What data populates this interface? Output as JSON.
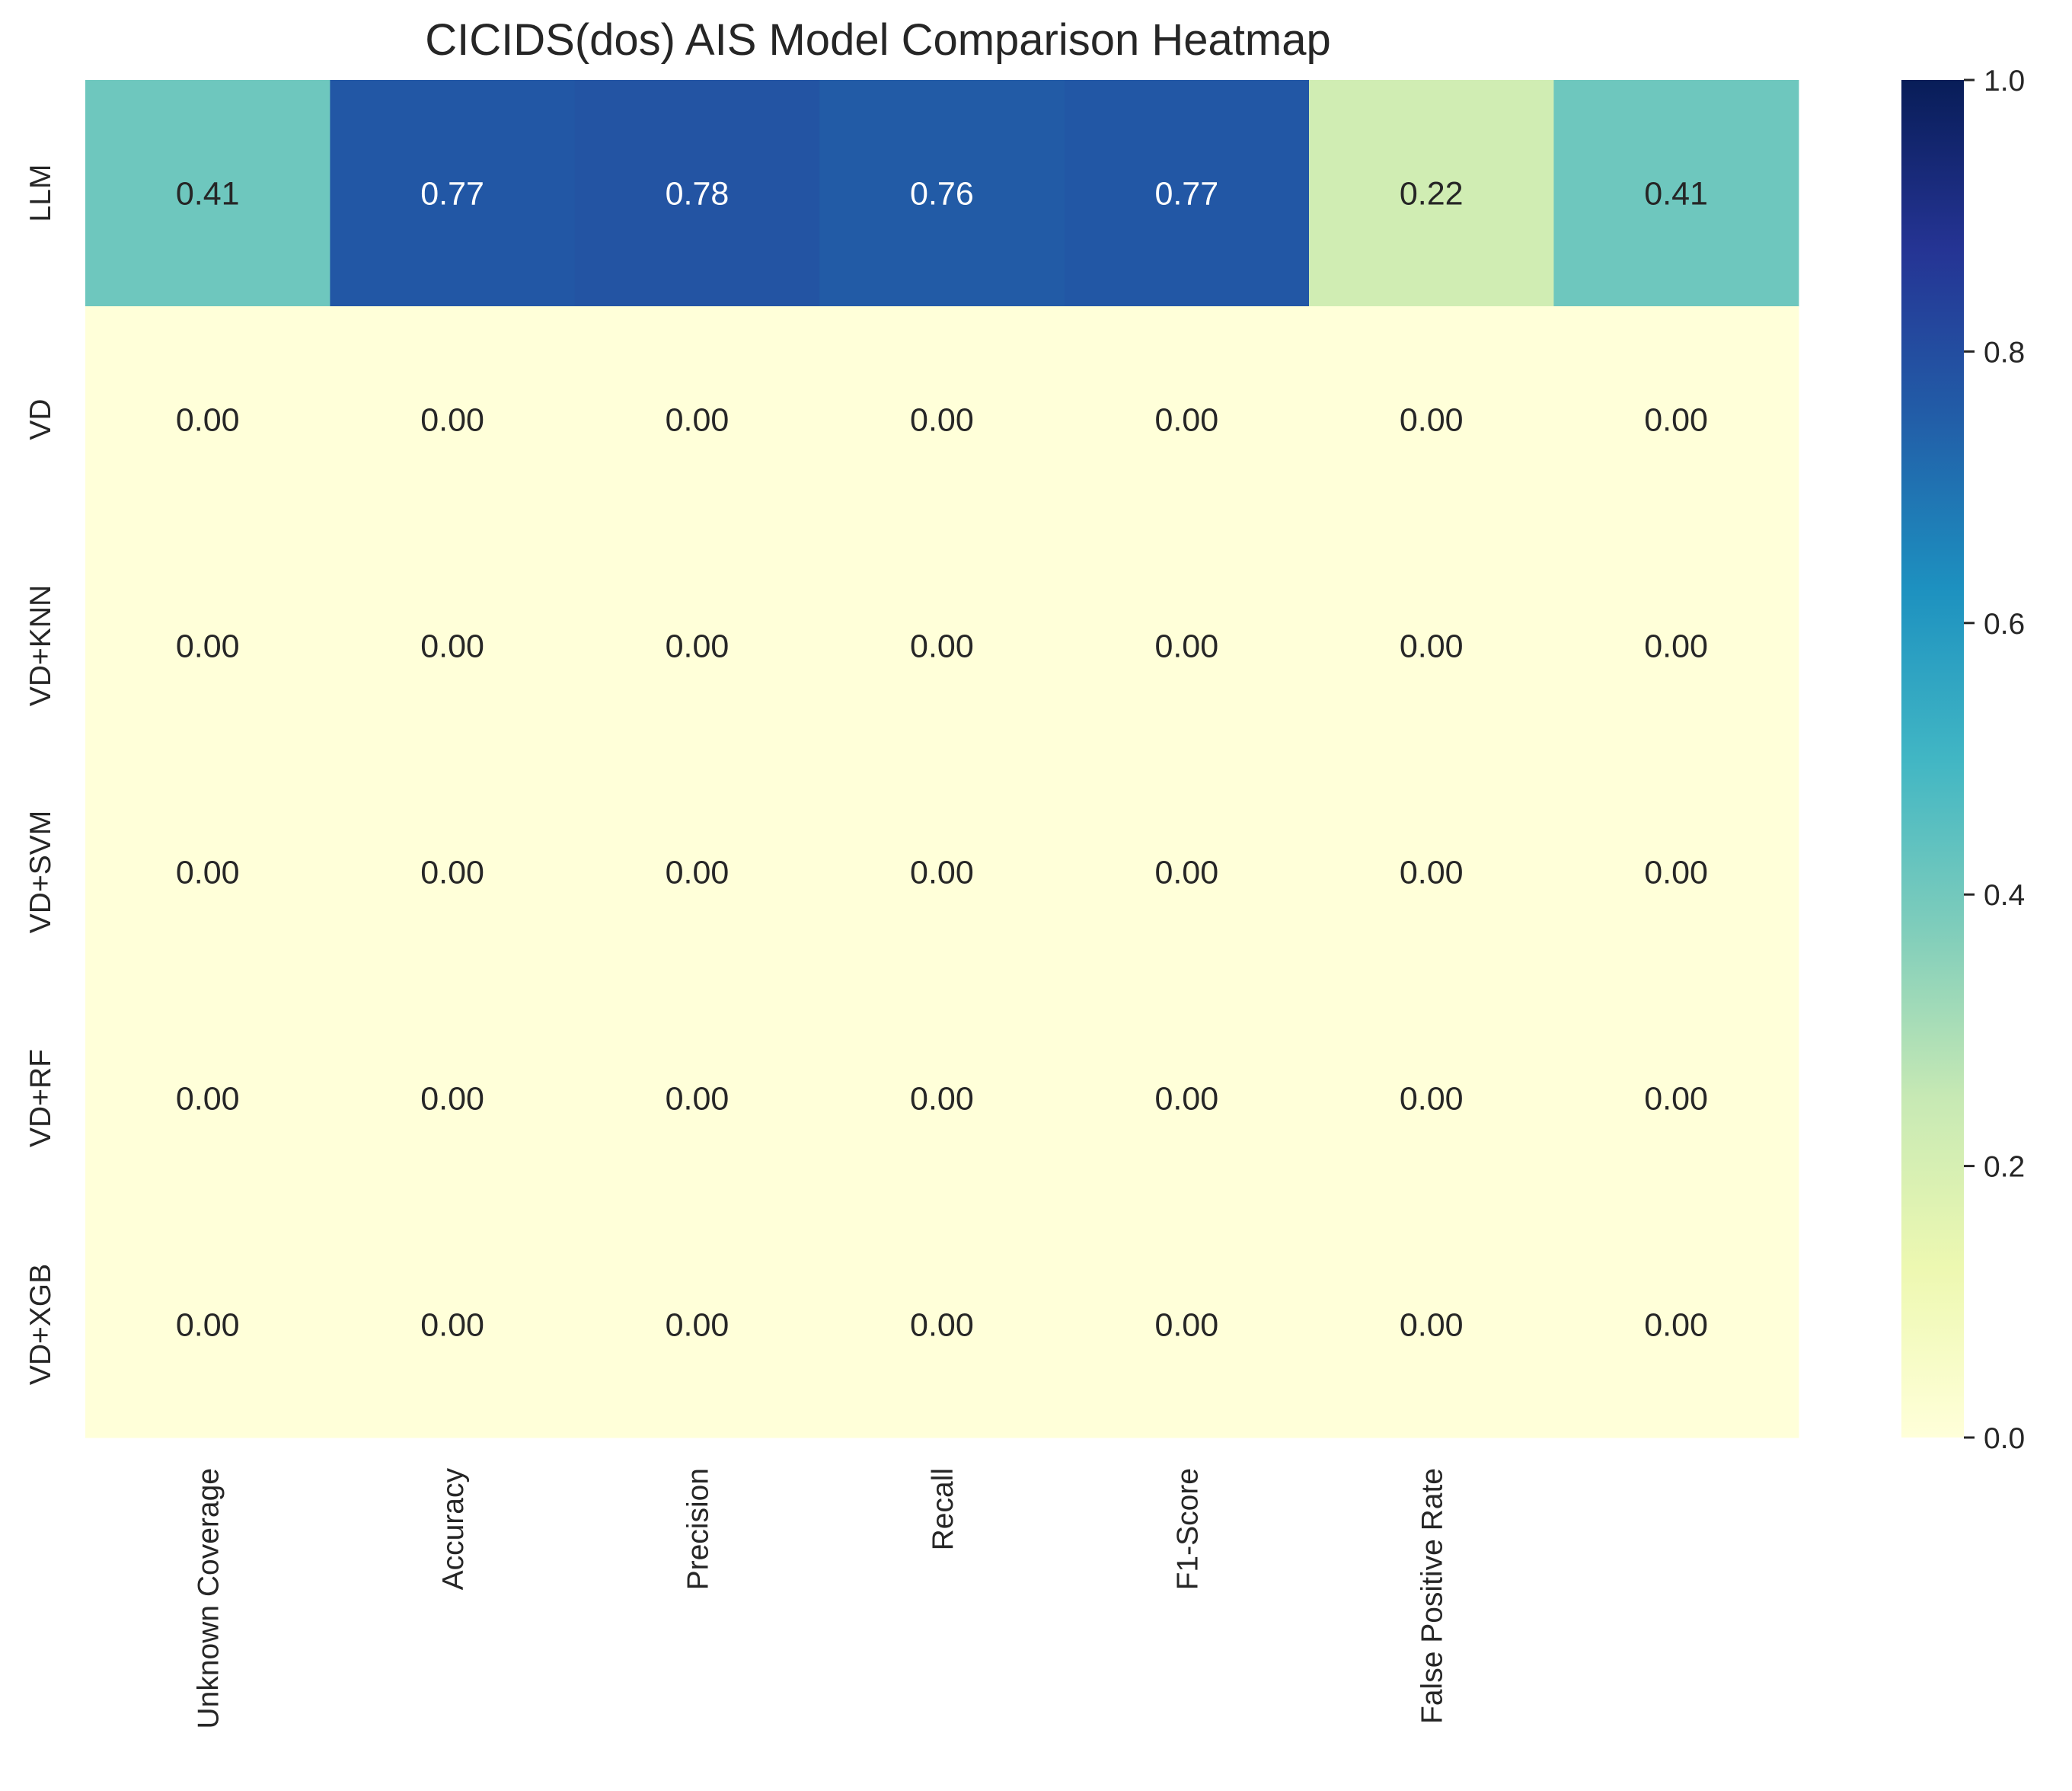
{
  "chart_data": {
    "type": "heatmap",
    "title": "CICIDS(dos) AIS Model Comparison Heatmap",
    "xlabel": "",
    "ylabel": "",
    "x_categories": [
      "Unknown Coverage",
      "Accuracy",
      "Precision",
      "Recall",
      "F1-Score",
      "False Positive Rate",
      ""
    ],
    "y_categories": [
      "LLM",
      "VD",
      "VD+KNN",
      "VD+SVM",
      "VD+RF",
      "VD+XGB"
    ],
    "values": [
      [
        0.41,
        0.77,
        0.78,
        0.76,
        0.77,
        0.22,
        0.41
      ],
      [
        0.0,
        0.0,
        0.0,
        0.0,
        0.0,
        0.0,
        0.0
      ],
      [
        0.0,
        0.0,
        0.0,
        0.0,
        0.0,
        0.0,
        0.0
      ],
      [
        0.0,
        0.0,
        0.0,
        0.0,
        0.0,
        0.0,
        0.0
      ],
      [
        0.0,
        0.0,
        0.0,
        0.0,
        0.0,
        0.0,
        0.0
      ],
      [
        0.0,
        0.0,
        0.0,
        0.0,
        0.0,
        0.0,
        0.0
      ]
    ],
    "value_format": "0.00",
    "colormap": "YlGnBu",
    "colormap_stops": [
      "#ffffd9",
      "#edf8b1",
      "#c7e9b4",
      "#7fcdbb",
      "#41b6c4",
      "#1d91c0",
      "#225ea8",
      "#253494",
      "#081d58"
    ],
    "vmin": 0.0,
    "vmax": 1.0,
    "colorbar_ticks": [
      "0.0",
      "0.2",
      "0.4",
      "0.6",
      "0.8",
      "1.0"
    ],
    "grid": false
  }
}
